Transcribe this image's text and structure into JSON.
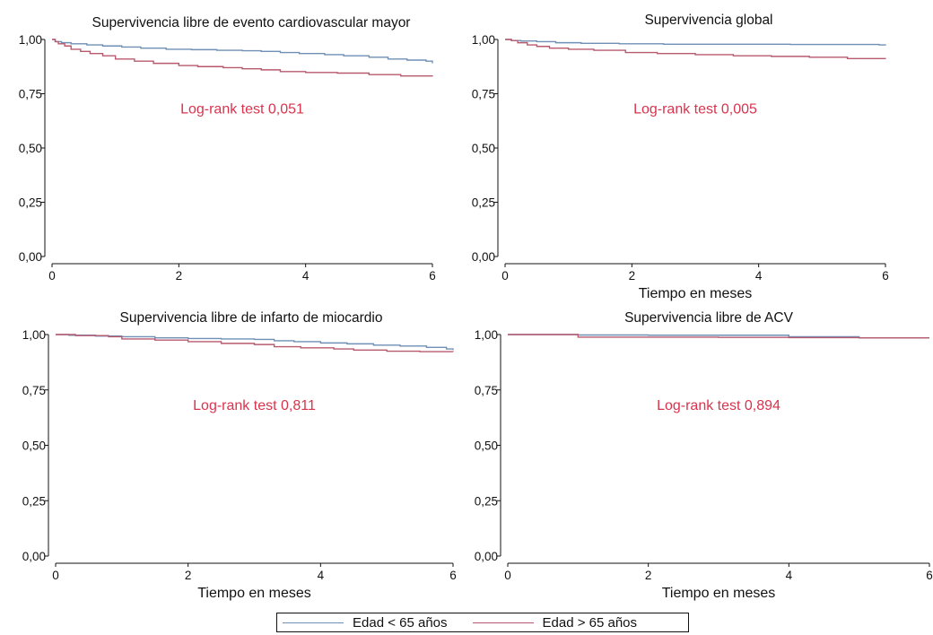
{
  "chart_data": [
    {
      "type": "line",
      "title": "Supervivencia libre de evento cardiovascular mayor",
      "xlabel": "",
      "ylabel": "",
      "xlim": [
        0,
        6
      ],
      "ylim": [
        0,
        1
      ],
      "x_ticks": [
        "0",
        "2",
        "4",
        "6"
      ],
      "y_ticks": [
        "0,00",
        "0,25",
        "0,50",
        "0,75",
        "1,00"
      ],
      "annotation": "Log-rank test 0,051",
      "series": [
        {
          "name": "Edad < 65 años",
          "color": "#6f8fb5",
          "x": [
            0,
            0.05,
            0.15,
            0.3,
            0.55,
            0.8,
            1.1,
            1.4,
            1.8,
            2.2,
            2.6,
            3.0,
            3.3,
            3.6,
            3.9,
            4.3,
            4.6,
            5.0,
            5.3,
            5.6,
            5.9,
            6.0
          ],
          "y": [
            1.0,
            0.99,
            0.985,
            0.98,
            0.975,
            0.97,
            0.965,
            0.96,
            0.955,
            0.953,
            0.95,
            0.948,
            0.945,
            0.94,
            0.935,
            0.93,
            0.925,
            0.918,
            0.91,
            0.905,
            0.9,
            0.89
          ]
        },
        {
          "name": "Edad > 65 años",
          "color": "#b85a6e",
          "x": [
            0,
            0.05,
            0.1,
            0.2,
            0.3,
            0.45,
            0.6,
            0.8,
            1.0,
            1.3,
            1.6,
            2.0,
            2.3,
            2.7,
            3.0,
            3.3,
            3.6,
            4.0,
            4.5,
            5.0,
            5.5,
            6.0
          ],
          "y": [
            1.0,
            0.99,
            0.98,
            0.97,
            0.955,
            0.945,
            0.935,
            0.925,
            0.91,
            0.9,
            0.89,
            0.88,
            0.875,
            0.87,
            0.865,
            0.86,
            0.852,
            0.848,
            0.845,
            0.838,
            0.832,
            0.83
          ]
        }
      ]
    },
    {
      "type": "line",
      "title": "Supervivencia global",
      "xlabel": "Tiempo en meses",
      "ylabel": "",
      "xlim": [
        0,
        6
      ],
      "ylim": [
        0,
        1
      ],
      "x_ticks": [
        "0",
        "2",
        "4",
        "6"
      ],
      "y_ticks": [
        "0,00",
        "0,25",
        "0,50",
        "0,75",
        "1,00"
      ],
      "annotation": "Log-rank test 0,005",
      "series": [
        {
          "name": "Edad < 65 años",
          "color": "#6f8fb5",
          "x": [
            0,
            0.1,
            0.25,
            0.5,
            0.8,
            1.2,
            1.8,
            2.5,
            3.5,
            4.5,
            5.5,
            5.9,
            6.0
          ],
          "y": [
            1.0,
            0.995,
            0.993,
            0.99,
            0.985,
            0.982,
            0.98,
            0.978,
            0.978,
            0.977,
            0.977,
            0.975,
            0.972
          ]
        },
        {
          "name": "Edad > 65 años",
          "color": "#b85a6e",
          "x": [
            0,
            0.1,
            0.2,
            0.35,
            0.5,
            0.7,
            1.0,
            1.4,
            1.9,
            2.4,
            3.0,
            3.6,
            4.2,
            4.8,
            5.4,
            6.0
          ],
          "y": [
            1.0,
            0.995,
            0.985,
            0.975,
            0.968,
            0.96,
            0.955,
            0.95,
            0.94,
            0.935,
            0.93,
            0.925,
            0.922,
            0.918,
            0.912,
            0.91
          ]
        }
      ]
    },
    {
      "type": "line",
      "title": "Supervivencia libre de infarto de miocardio",
      "xlabel": "Tiempo en meses",
      "ylabel": "",
      "xlim": [
        0,
        6
      ],
      "ylim": [
        0,
        1
      ],
      "x_ticks": [
        "0",
        "2",
        "4",
        "6"
      ],
      "y_ticks": [
        "0,00",
        "0,25",
        "0,50",
        "0,75",
        "1,00"
      ],
      "annotation": "Log-rank test 0,811",
      "series": [
        {
          "name": "Edad < 65 años",
          "color": "#6f8fb5",
          "x": [
            0,
            0.2,
            0.6,
            1.0,
            1.5,
            2.0,
            2.5,
            3.0,
            3.3,
            3.6,
            4.0,
            4.4,
            4.8,
            5.2,
            5.6,
            5.9,
            6.0
          ],
          "y": [
            1.0,
            0.997,
            0.993,
            0.99,
            0.985,
            0.982,
            0.98,
            0.978,
            0.972,
            0.968,
            0.962,
            0.958,
            0.952,
            0.948,
            0.942,
            0.935,
            0.93
          ]
        },
        {
          "name": "Edad > 65 años",
          "color": "#b85a6e",
          "x": [
            0,
            0.3,
            0.8,
            1.0,
            1.5,
            2.0,
            2.5,
            3.0,
            3.3,
            3.7,
            4.2,
            4.5,
            5.0,
            5.5,
            6.0
          ],
          "y": [
            1.0,
            0.995,
            0.99,
            0.98,
            0.975,
            0.968,
            0.96,
            0.955,
            0.945,
            0.94,
            0.935,
            0.93,
            0.925,
            0.923,
            0.922
          ]
        }
      ]
    },
    {
      "type": "line",
      "title": "Supervivencia libre de ACV",
      "xlabel": "Tiempo en meses",
      "ylabel": "",
      "xlim": [
        0,
        6
      ],
      "ylim": [
        0,
        1
      ],
      "x_ticks": [
        "0",
        "2",
        "4",
        "6"
      ],
      "y_ticks": [
        "0,00",
        "0,25",
        "0,50",
        "0,75",
        "1,00"
      ],
      "annotation": "Log-rank test 0,894",
      "series": [
        {
          "name": "Edad < 65 años",
          "color": "#6f8fb5",
          "x": [
            0,
            1.0,
            2.0,
            3.0,
            3.9,
            4.0,
            4.9,
            5.0,
            6.0
          ],
          "y": [
            1.0,
            0.998,
            0.997,
            0.997,
            0.997,
            0.99,
            0.99,
            0.985,
            0.985
          ]
        },
        {
          "name": "Edad > 65 años",
          "color": "#b85a6e",
          "x": [
            0,
            0.9,
            1.0,
            2.0,
            3.0,
            4.0,
            5.0,
            6.0
          ],
          "y": [
            1.0,
            1.0,
            0.988,
            0.988,
            0.987,
            0.986,
            0.985,
            0.985
          ]
        }
      ]
    }
  ],
  "legend": {
    "items": [
      {
        "label": "Edad < 65 años",
        "color": "#6f8fb5"
      },
      {
        "label": "Edad > 65 años",
        "color": "#b85a6e"
      }
    ]
  }
}
